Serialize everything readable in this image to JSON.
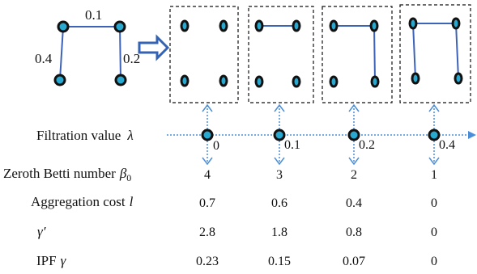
{
  "graph": {
    "edge_weights": [
      "0.1",
      "0.4",
      "0.2"
    ]
  },
  "filtration": {
    "label": "Filtration value",
    "symbol": "λ",
    "ticks": [
      "0",
      "0.1",
      "0.2",
      "0.4"
    ]
  },
  "rows": [
    {
      "label": "Zeroth Betti number",
      "symbol": "β",
      "subscript": "0",
      "values": [
        "4",
        "3",
        "2",
        "1"
      ]
    },
    {
      "label": "Aggregation cost",
      "symbol": "l",
      "subscript": "",
      "values": [
        "0.7",
        "0.6",
        "0.4",
        "0"
      ]
    },
    {
      "label": "",
      "symbol": "γ′",
      "subscript": "",
      "values": [
        "2.8",
        "1.8",
        "0.8",
        "0"
      ]
    },
    {
      "label": "IPF",
      "symbol": "γ",
      "subscript": "",
      "values": [
        "0.23",
        "0.15",
        "0.07",
        "0"
      ]
    }
  ],
  "colors": {
    "edge": "#3d63b8",
    "node_fill": "#29a8d0",
    "node_stroke": "#111111",
    "arrow": "#3563b4",
    "axis": "#4a8ed9"
  }
}
